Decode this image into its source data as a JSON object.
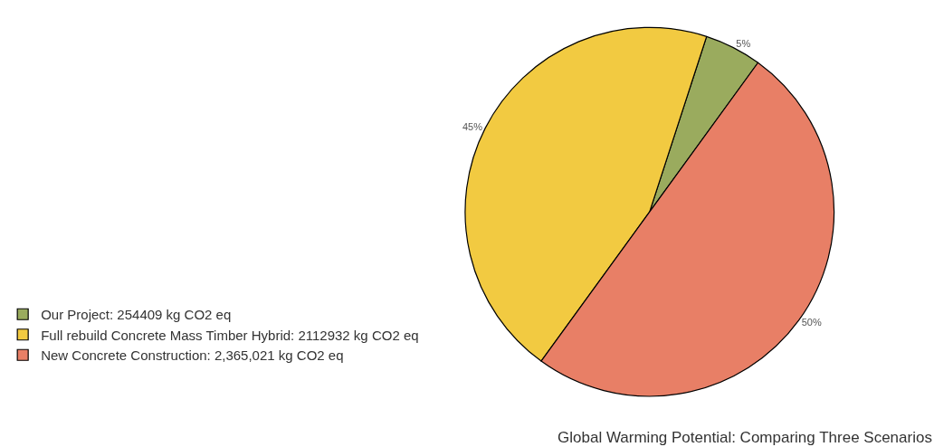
{
  "chart_data": {
    "type": "pie",
    "title": "Global Warming Potential: Comparing Three Scenarios",
    "categories": [
      "Our Project: 254409 kg CO2 eq",
      "Full rebuild Concrete Mass Timber Hybrid: 2112932 kg CO2 eq",
      "New Concrete Construction: 2,365,021 kg CO2 eq"
    ],
    "values": [
      5,
      45,
      50
    ],
    "value_labels": [
      "5%",
      "45%",
      "50%"
    ],
    "colors": [
      "#9aab5e",
      "#f2ca41",
      "#e87f66"
    ],
    "legend": "bottom left"
  }
}
